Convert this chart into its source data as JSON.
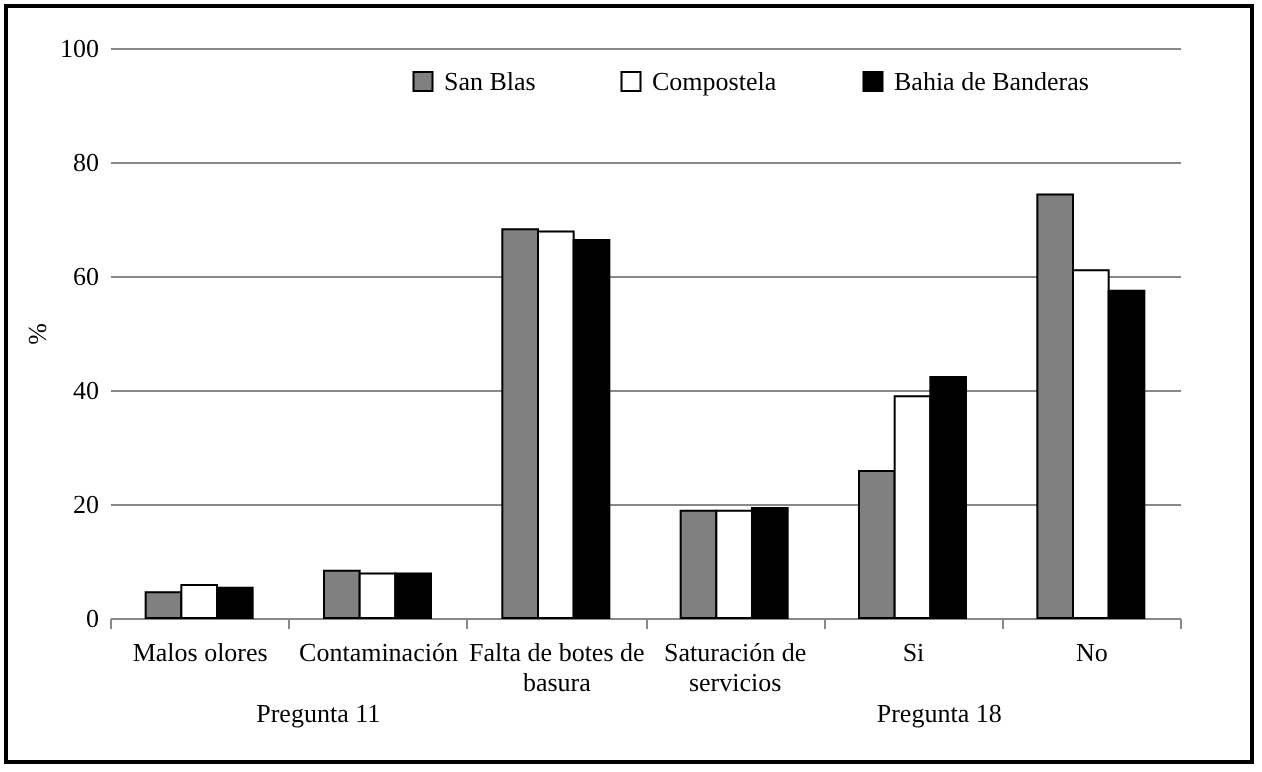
{
  "chart_data": {
    "type": "bar",
    "ylabel": "%",
    "categories": [
      "Malos olores",
      "Contaminación",
      "Falta de botes de basura",
      "Saturación de servicios",
      "Si",
      "No"
    ],
    "series": [
      {
        "name": "San Blas",
        "color": "#808080",
        "values": [
          4.5,
          8.3,
          68.2,
          18.8,
          25.8,
          74.3
        ]
      },
      {
        "name": "Compostela",
        "color": "#ffffff",
        "values": [
          5.8,
          7.8,
          67.8,
          18.8,
          38.9,
          61
        ]
      },
      {
        "name": "Bahia de Banderas",
        "color": "#000000",
        "values": [
          5.3,
          7.8,
          66.3,
          19.3,
          42.3,
          57.4
        ]
      }
    ],
    "ylim": [
      0,
      100
    ],
    "yticks": [
      0,
      20,
      40,
      60,
      80,
      100
    ],
    "grid": "y",
    "legend": "top",
    "annotations": [
      "Pregunta 11",
      "Pregunta 18"
    ]
  }
}
